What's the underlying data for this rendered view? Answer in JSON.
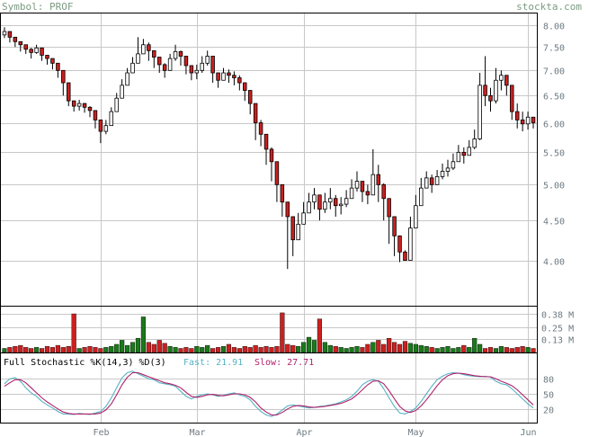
{
  "header": {
    "symbol_label": "Symbol: PROF",
    "site": "stockta.com"
  },
  "colors": {
    "up_fill": "#ffffff",
    "down_fill": "#cc2020",
    "candle_outline": "#000000",
    "vol_up": "#1a7a1a",
    "vol_down": "#cc2020",
    "grid": "#c8c8c8",
    "fast_line": "#55b3c4",
    "slow_line": "#b0206a"
  },
  "chart_data": [
    {
      "type": "candlestick",
      "title": "",
      "x_tick_labels": [
        "Feb",
        "Mar",
        "Apr",
        "May",
        "Jun"
      ],
      "x_tick_bar_index": [
        18,
        36,
        56,
        77,
        98
      ],
      "y_ticks": [
        4.0,
        4.5,
        5.0,
        5.5,
        6.0,
        6.5,
        7.0,
        7.5,
        8.0
      ],
      "y_tick_labels": [
        "4.00",
        "4.50",
        "5.00",
        "5.50",
        "6.00",
        "6.50",
        "7.00",
        "7.50",
        "8.00"
      ],
      "ylim": [
        3.5,
        8.3
      ],
      "y_scale": "log",
      "grid": true,
      "closes": [
        7.85,
        7.72,
        7.62,
        7.55,
        7.45,
        7.38,
        7.48,
        7.32,
        7.25,
        7.15,
        7.0,
        6.75,
        6.4,
        6.3,
        6.35,
        6.28,
        6.22,
        6.05,
        5.85,
        5.95,
        6.2,
        6.45,
        6.7,
        6.95,
        7.15,
        7.35,
        7.55,
        7.42,
        7.28,
        7.12,
        7.0,
        7.25,
        7.4,
        7.3,
        7.1,
        6.95,
        7.0,
        7.15,
        7.3,
        6.95,
        6.8,
        6.95,
        6.9,
        6.85,
        6.75,
        6.6,
        6.35,
        6.0,
        5.8,
        5.55,
        5.35,
        5.0,
        4.75,
        4.55,
        4.25,
        4.45,
        4.6,
        4.75,
        4.85,
        4.65,
        4.75,
        4.8,
        4.7,
        4.72,
        4.8,
        4.95,
        5.05,
        4.9,
        4.85,
        5.15,
        5.0,
        4.8,
        4.55,
        4.3,
        4.1,
        4.0,
        4.4,
        4.7,
        4.95,
        5.1,
        5.0,
        5.12,
        5.2,
        5.25,
        5.35,
        5.5,
        5.45,
        5.58,
        5.72,
        6.7,
        6.5,
        6.4,
        6.8,
        6.9,
        6.7,
        6.2,
        6.05,
        5.98,
        6.1,
        6.0
      ],
      "highs": [
        7.95,
        7.85,
        7.7,
        7.62,
        7.55,
        7.48,
        7.55,
        7.4,
        7.32,
        7.22,
        7.08,
        6.85,
        6.55,
        6.38,
        6.42,
        6.36,
        6.3,
        6.12,
        5.95,
        6.05,
        6.28,
        6.55,
        6.82,
        7.05,
        7.28,
        7.72,
        7.68,
        7.6,
        7.42,
        7.28,
        7.15,
        7.35,
        7.55,
        7.42,
        7.25,
        7.1,
        7.12,
        7.3,
        7.42,
        7.15,
        6.95,
        7.05,
        7.02,
        6.98,
        6.9,
        6.75,
        6.55,
        6.22,
        6.05,
        5.75,
        5.58,
        5.22,
        4.95,
        4.7,
        4.55,
        4.6,
        4.75,
        4.88,
        4.95,
        4.85,
        4.88,
        4.95,
        4.85,
        4.82,
        4.92,
        5.08,
        5.2,
        5.05,
        5.0,
        5.55,
        5.3,
        5.02,
        4.75,
        4.5,
        4.28,
        4.12,
        4.55,
        4.85,
        5.1,
        5.2,
        5.15,
        5.22,
        5.32,
        5.38,
        5.48,
        5.62,
        5.58,
        5.7,
        5.88,
        6.95,
        7.3,
        6.65,
        7.05,
        7.0,
        6.9,
        6.5,
        6.35,
        6.2,
        6.2,
        6.1
      ],
      "lows": [
        7.7,
        7.6,
        7.5,
        7.4,
        7.35,
        7.25,
        7.35,
        7.2,
        7.12,
        7.02,
        6.85,
        6.5,
        6.3,
        6.2,
        6.22,
        6.18,
        6.1,
        5.9,
        5.65,
        5.8,
        6.05,
        6.3,
        6.55,
        6.8,
        6.98,
        7.15,
        7.35,
        7.2,
        7.05,
        6.95,
        6.85,
        7.05,
        7.2,
        7.1,
        6.92,
        6.8,
        6.82,
        6.95,
        7.1,
        6.75,
        6.65,
        6.8,
        6.75,
        6.7,
        6.6,
        6.4,
        6.15,
        5.7,
        5.6,
        5.3,
        5.05,
        4.75,
        4.55,
        3.9,
        4.05,
        4.35,
        4.48,
        4.6,
        4.65,
        4.5,
        4.6,
        4.65,
        4.55,
        4.58,
        4.68,
        4.8,
        4.9,
        4.75,
        4.72,
        4.9,
        4.75,
        4.5,
        4.2,
        4.05,
        3.98,
        4.02,
        4.25,
        4.55,
        4.8,
        4.95,
        4.88,
        5.0,
        5.08,
        5.12,
        5.22,
        5.35,
        5.32,
        5.45,
        5.55,
        5.7,
        6.3,
        6.2,
        6.35,
        6.6,
        6.5,
        6.05,
        5.9,
        5.85,
        5.88,
        5.9
      ]
    },
    {
      "type": "bar",
      "title": "",
      "y_tick_labels": [
        "0.38 M",
        "0.25 M",
        "0.13 M"
      ],
      "ylim": [
        0,
        0.46
      ],
      "values": [
        0.04,
        0.05,
        0.06,
        0.07,
        0.05,
        0.04,
        0.05,
        0.04,
        0.06,
        0.05,
        0.07,
        0.05,
        0.06,
        0.38,
        0.04,
        0.05,
        0.06,
        0.05,
        0.04,
        0.05,
        0.06,
        0.08,
        0.12,
        0.07,
        0.1,
        0.14,
        0.35,
        0.1,
        0.08,
        0.12,
        0.09,
        0.06,
        0.05,
        0.04,
        0.05,
        0.04,
        0.06,
        0.05,
        0.07,
        0.04,
        0.05,
        0.06,
        0.08,
        0.05,
        0.04,
        0.06,
        0.05,
        0.07,
        0.05,
        0.06,
        0.05,
        0.06,
        0.39,
        0.08,
        0.07,
        0.06,
        0.1,
        0.15,
        0.12,
        0.33,
        0.1,
        0.07,
        0.06,
        0.05,
        0.04,
        0.05,
        0.06,
        0.05,
        0.08,
        0.1,
        0.12,
        0.08,
        0.14,
        0.1,
        0.08,
        0.11,
        0.09,
        0.08,
        0.07,
        0.06,
        0.05,
        0.04,
        0.05,
        0.06,
        0.04,
        0.05,
        0.07,
        0.05,
        0.14,
        0.08,
        0.04,
        0.05,
        0.04,
        0.06,
        0.05,
        0.04,
        0.05,
        0.06,
        0.05,
        0.04
      ]
    },
    {
      "type": "line",
      "title": "Full Stochastic %K(14,3) %D(3)",
      "fast_label": "Fast: 21.91",
      "slow_label": "Slow: 27.71",
      "y_tick_labels": [
        "80",
        "50",
        "20"
      ],
      "y_ticks": [
        80,
        50,
        20
      ],
      "ylim": [
        0,
        100
      ],
      "series": [
        {
          "name": "Fast",
          "values": [
            70,
            80,
            82,
            75,
            62,
            52,
            45,
            35,
            28,
            22,
            15,
            10,
            10,
            9,
            11,
            10,
            9,
            12,
            15,
            25,
            42,
            62,
            82,
            92,
            95,
            90,
            85,
            80,
            78,
            72,
            70,
            68,
            65,
            55,
            45,
            40,
            45,
            48,
            50,
            48,
            45,
            47,
            50,
            52,
            48,
            45,
            38,
            25,
            15,
            8,
            5,
            10,
            18,
            26,
            28,
            26,
            24,
            22,
            23,
            25,
            26,
            28,
            30,
            34,
            38,
            45,
            55,
            68,
            75,
            78,
            75,
            60,
            42,
            25,
            12,
            10,
            15,
            22,
            35,
            50,
            65,
            78,
            85,
            90,
            92,
            91,
            88,
            86,
            85,
            84,
            85,
            83,
            75,
            70,
            68,
            60,
            50,
            40,
            30,
            22
          ]
        },
        {
          "name": "Slow",
          "values": [
            65,
            72,
            78,
            78,
            72,
            62,
            52,
            42,
            34,
            27,
            20,
            14,
            11,
            10,
            10,
            10,
            10,
            10,
            12,
            18,
            30,
            48,
            68,
            83,
            92,
            92,
            88,
            84,
            80,
            76,
            72,
            70,
            67,
            62,
            53,
            45,
            43,
            45,
            48,
            49,
            47,
            46,
            48,
            50,
            50,
            48,
            43,
            34,
            22,
            14,
            8,
            8,
            13,
            20,
            25,
            27,
            26,
            24,
            23,
            24,
            25,
            27,
            29,
            31,
            35,
            40,
            48,
            58,
            68,
            75,
            76,
            70,
            56,
            40,
            25,
            16,
            13,
            17,
            26,
            38,
            52,
            66,
            78,
            86,
            90,
            91,
            90,
            88,
            86,
            85,
            84,
            84,
            80,
            75,
            71,
            66,
            58,
            48,
            38,
            28
          ]
        }
      ]
    }
  ]
}
